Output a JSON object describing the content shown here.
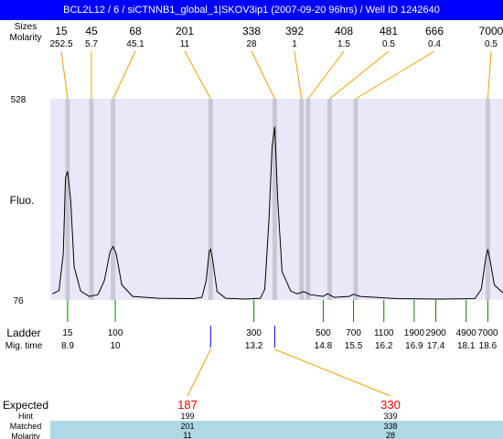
{
  "title": "BCL2L12 / 6 / siCTNNB1_global_1|SKOV3ip1 (2007-09-20 96hrs) / Well ID 1242640",
  "labels": {
    "sizes": "Sizes",
    "molarity": "Molarity",
    "fluo": "Fluo.",
    "ladder": "Ladder",
    "mig_time": "Mig. time",
    "expected": "Expected",
    "hint": "Hint",
    "matched": "Matched",
    "molarity_bottom": "Molarity"
  },
  "colors": {
    "title_bg": "#0000ff",
    "plot_bg": "#e8e8f8",
    "band": "#c8c8d4",
    "peak_line": "#f0a000",
    "ladder_tick": "#008000",
    "marker_tick": "#0000ff",
    "expected_text": "#ff0000",
    "table_bg": "#add8e6"
  },
  "chart_data": {
    "type": "line",
    "y_axis": {
      "min": 76,
      "max": 528,
      "tick_labels": [
        "528",
        "76"
      ]
    },
    "top_peaks": [
      {
        "size": "15",
        "molarity": "252.5"
      },
      {
        "size": "45",
        "molarity": "5.7"
      },
      {
        "size": "68",
        "molarity": "45.1"
      },
      {
        "size": "201",
        "molarity": "11"
      },
      {
        "size": "338",
        "molarity": "28"
      },
      {
        "size": "392",
        "molarity": "1"
      },
      {
        "size": "408",
        "molarity": "1.5"
      },
      {
        "size": "481",
        "molarity": "0.5"
      },
      {
        "size": "666",
        "molarity": "0.4"
      },
      {
        "size": "7000",
        "molarity": "0.5"
      }
    ],
    "ladder": [
      {
        "size": "15",
        "mig_time": "8.9"
      },
      {
        "size": "100",
        "mig_time": "10"
      },
      {
        "size": "300",
        "mig_time": "13.2"
      },
      {
        "size": "500",
        "mig_time": "14.8"
      },
      {
        "size": "700",
        "mig_time": "15.5"
      },
      {
        "size": "1100",
        "mig_time": "16.2"
      },
      {
        "size": "1900",
        "mig_time": "16.9"
      },
      {
        "size": "2900",
        "mig_time": "17.4"
      },
      {
        "size": "4900",
        "mig_time": "18.1"
      },
      {
        "size": "7000",
        "mig_time": "18.6"
      }
    ],
    "expected": [
      {
        "expected": "187",
        "hint": "199",
        "matched": "201",
        "molarity": "11"
      },
      {
        "expected": "330",
        "hint": "339",
        "matched": "338",
        "molarity": "28"
      }
    ],
    "trace": [
      [
        8.55,
        90
      ],
      [
        8.7,
        97
      ],
      [
        8.8,
        180
      ],
      [
        8.85,
        350
      ],
      [
        8.9,
        365
      ],
      [
        8.97,
        300
      ],
      [
        9.05,
        150
      ],
      [
        9.2,
        96
      ],
      [
        9.4,
        84
      ],
      [
        9.6,
        88
      ],
      [
        9.75,
        120
      ],
      [
        9.88,
        185
      ],
      [
        9.95,
        196
      ],
      [
        10.02,
        180
      ],
      [
        10.15,
        110
      ],
      [
        10.4,
        84
      ],
      [
        11.0,
        80
      ],
      [
        11.8,
        79
      ],
      [
        12.0,
        82
      ],
      [
        12.1,
        120
      ],
      [
        12.17,
        186
      ],
      [
        12.2,
        190
      ],
      [
        12.25,
        165
      ],
      [
        12.35,
        95
      ],
      [
        12.55,
        80
      ],
      [
        13.0,
        78
      ],
      [
        13.35,
        80
      ],
      [
        13.45,
        100
      ],
      [
        13.55,
        260
      ],
      [
        13.62,
        420
      ],
      [
        13.68,
        465
      ],
      [
        13.75,
        300
      ],
      [
        13.85,
        140
      ],
      [
        14.05,
        96
      ],
      [
        14.2,
        90
      ],
      [
        14.35,
        95
      ],
      [
        14.5,
        88
      ],
      [
        14.8,
        84
      ],
      [
        14.9,
        90
      ],
      [
        15.05,
        82
      ],
      [
        15.4,
        84
      ],
      [
        15.5,
        89
      ],
      [
        15.65,
        84
      ],
      [
        16.5,
        79
      ],
      [
        17.5,
        78
      ],
      [
        18.3,
        79
      ],
      [
        18.45,
        100
      ],
      [
        18.55,
        170
      ],
      [
        18.6,
        190
      ],
      [
        18.66,
        160
      ],
      [
        18.75,
        110
      ],
      [
        18.95,
        92
      ]
    ]
  }
}
